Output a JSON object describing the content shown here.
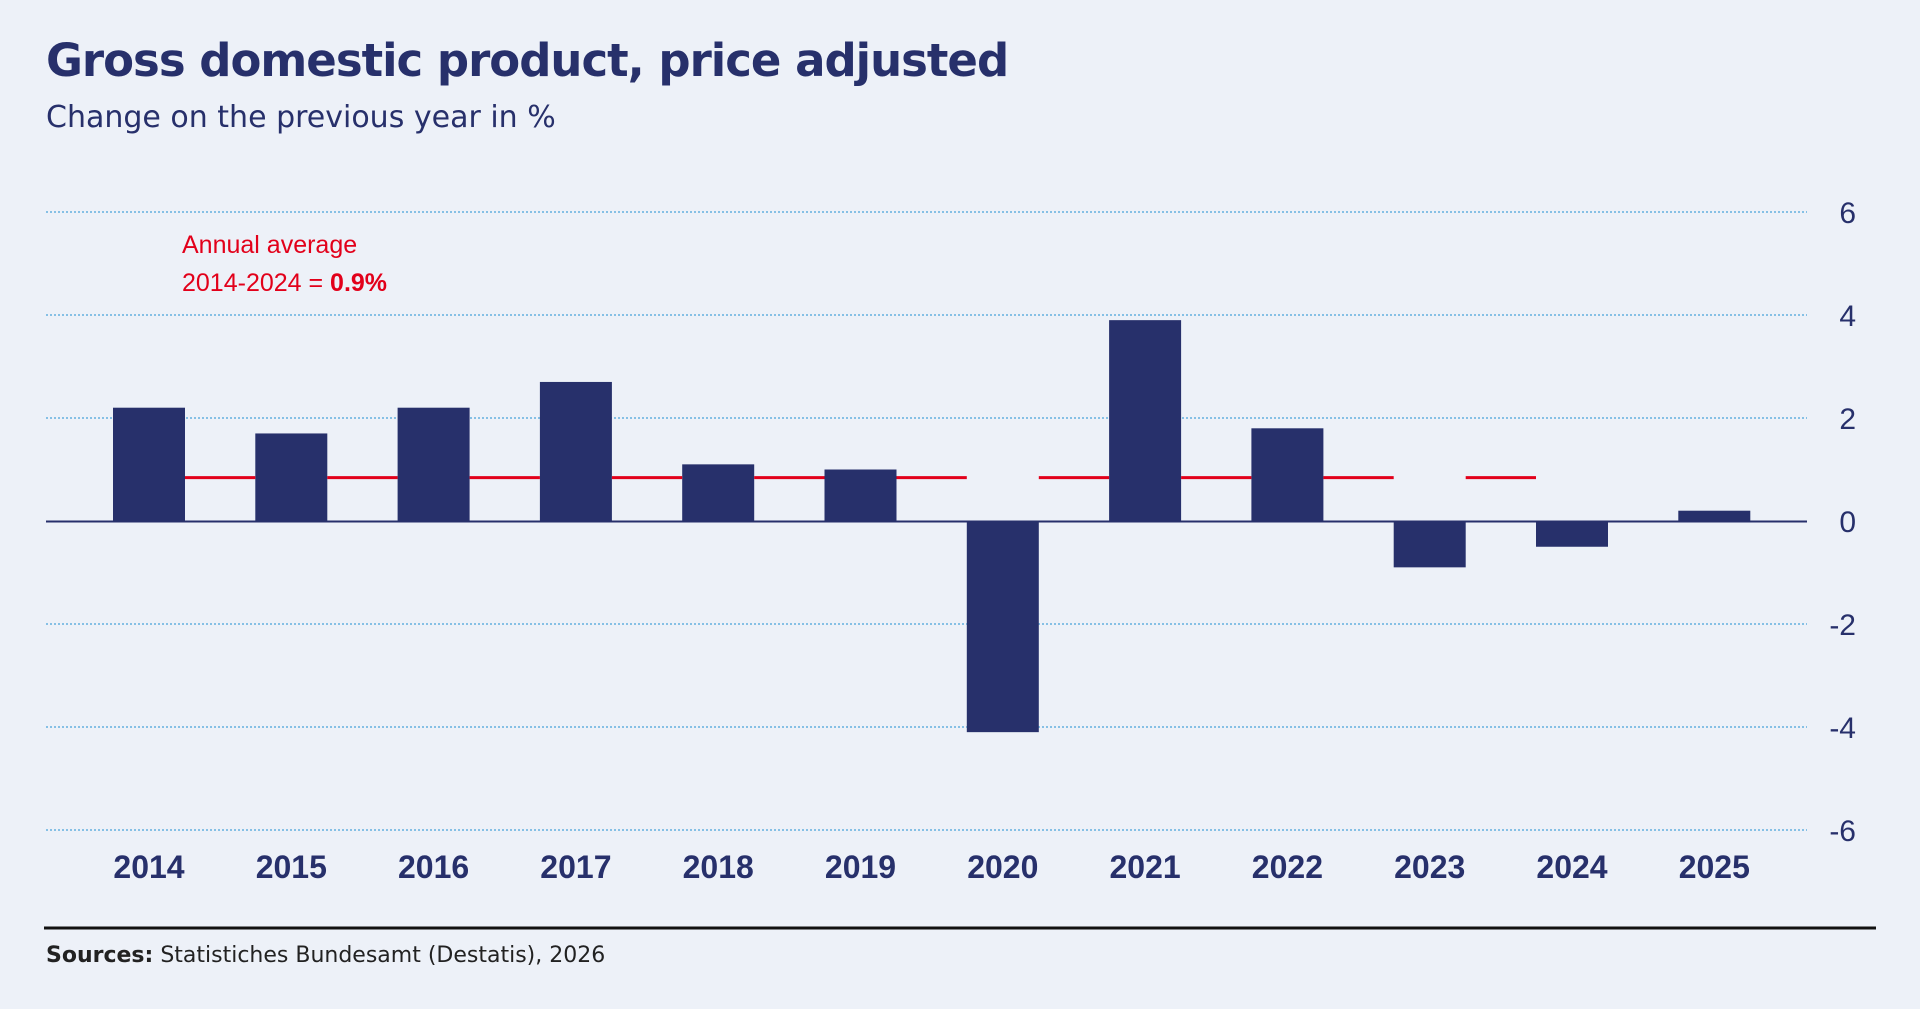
{
  "chart_data": {
    "type": "bar",
    "title": "Gross domestic product, price adjusted",
    "subtitle": "Change on the previous year in %",
    "categories": [
      "2014",
      "2015",
      "2016",
      "2017",
      "2018",
      "2019",
      "2020",
      "2021",
      "2022",
      "2023",
      "2024",
      "2025"
    ],
    "values": [
      2.2,
      1.7,
      2.2,
      2.7,
      1.1,
      1.0,
      -4.1,
      3.9,
      1.8,
      -0.9,
      -0.5,
      0.2
    ],
    "ylim": [
      -6,
      6
    ],
    "yticks": [
      6,
      4,
      2,
      0,
      -2,
      -4,
      -6
    ],
    "ytick_labels": [
      "6",
      "4",
      "2",
      "0",
      "-2",
      "-4",
      "-6"
    ],
    "grid": true,
    "y_axis_position": "right",
    "reference_line": {
      "value": 0.9,
      "from": "2014",
      "to": "2024",
      "label_line1": "Annual average",
      "label_line2": "2014-2024 = ",
      "label_value": "0.9%"
    },
    "colors": {
      "bar": "#27306b",
      "reference": "#e2001a",
      "grid": "#4aa3d9",
      "text": "#27306b"
    }
  },
  "footer": {
    "sources_label": "Sources:",
    "sources_text": " Statistiches Bundesamt (Destatis), 2026"
  }
}
